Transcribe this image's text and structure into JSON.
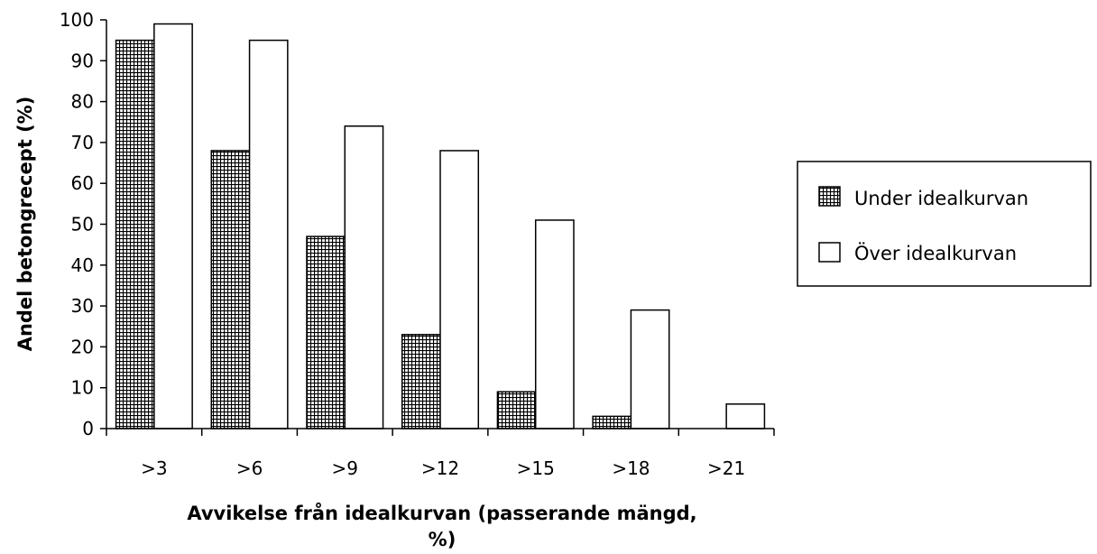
{
  "chart_data": {
    "type": "bar",
    "title": "",
    "xlabel_line1": "Avvikelse från idealkurvan (passerande mängd,",
    "xlabel_line2": "%)",
    "ylabel": "Andel betongrecept (%)",
    "ylim": [
      0,
      100
    ],
    "yticks": [
      "0",
      "10",
      "20",
      "30",
      "40",
      "50",
      "60",
      "70",
      "80",
      "90",
      "100"
    ],
    "categories": [
      ">3",
      ">6",
      ">9",
      ">12",
      ">15",
      ">18",
      ">21"
    ],
    "series": [
      {
        "name": "Under idealkurvan",
        "values": [
          95,
          68,
          47,
          23,
          9,
          3,
          0
        ],
        "fill": "hatched"
      },
      {
        "name": "Över idealkurvan",
        "values": [
          99,
          95,
          74,
          68,
          51,
          29,
          6
        ],
        "fill": "white"
      }
    ],
    "grid": false,
    "legend_position": "right"
  }
}
